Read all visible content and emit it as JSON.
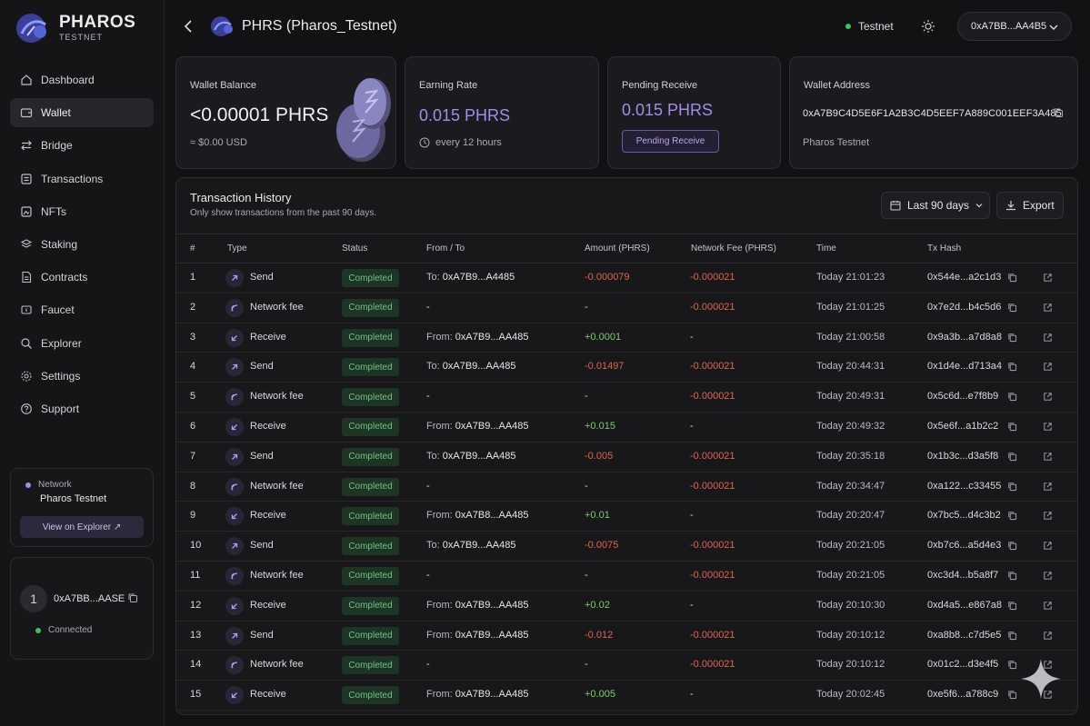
{
  "brand": {
    "name": "PHAROS",
    "sub": "TESTNET"
  },
  "nav": [
    {
      "label": "Dashboard",
      "icon": "home-icon"
    },
    {
      "label": "Wallet",
      "icon": "wallet-icon",
      "active": true
    },
    {
      "label": "Bridge",
      "icon": "bridge-icon"
    },
    {
      "label": "Transactions",
      "icon": "transactions-icon"
    },
    {
      "label": "NFTs",
      "icon": "nft-icon"
    },
    {
      "label": "Staking",
      "icon": "staking-icon"
    },
    {
      "label": "Contracts",
      "icon": "contract-icon"
    },
    {
      "label": "Faucet",
      "icon": "faucet-icon"
    },
    {
      "label": "Explorer",
      "icon": "explorer-icon"
    },
    {
      "label": "Settings",
      "icon": "gear-icon"
    },
    {
      "label": "Support",
      "icon": "support-icon"
    }
  ],
  "network_card": {
    "label": "Network",
    "name": "Pharos Testnet",
    "button": "View on Explorer ↗"
  },
  "account": {
    "avatar": "1",
    "address": "0xA7BB...AASE",
    "status": "Connected"
  },
  "header": {
    "title": "PHRS (Pharos_Testnet)",
    "network": "Testnet",
    "wallet": "0xA7BB...AA4B5"
  },
  "cards": {
    "balance": {
      "label": "Wallet Balance",
      "value": "<0.00001 PHRS",
      "sub": "≈ $0.00 USD"
    },
    "earning": {
      "label": "Earning Rate",
      "value": "0.015 PHRS",
      "sub": "every 12 hours"
    },
    "pending": {
      "label": "Pending Receive",
      "value": "0.015 PHRS",
      "button": "Pending Receive"
    },
    "address": {
      "label": "Wallet Address",
      "value": "0xA7B9C4D5E6F1A2B3C4D5EEF7A889C001EEF3A485",
      "network": "Pharos Testnet"
    }
  },
  "history": {
    "title": "Transaction History",
    "subtitle": "Only show transactions from the past 90 days.",
    "range": "Last 90 days",
    "export": "Export",
    "columns": [
      "#",
      "Type",
      "Status",
      "From / To",
      "Amount (PHRS)",
      "Network Fee (PHRS)",
      "Time",
      "Tx Hash"
    ],
    "rows": [
      {
        "n": "1",
        "type": "Send",
        "status": "Completed",
        "dir": "To:",
        "addr": "0xA7B9...A4485",
        "amount": "-0.000079",
        "fee": "-0.000021",
        "time": "Today 21:01:23",
        "hash": "0x544e...a2c1d3"
      },
      {
        "n": "2",
        "type": "Network fee",
        "status": "Completed",
        "dir": "",
        "addr": "-",
        "amount": "-",
        "fee": "-0.000021",
        "time": "Today 21:01:25",
        "hash": "0x7e2d...b4c5d6"
      },
      {
        "n": "3",
        "type": "Receive",
        "status": "Completed",
        "dir": "From:",
        "addr": "0xA7B9...AA485",
        "amount": "+0.0001",
        "fee": "-",
        "time": "Today 21:00:58",
        "hash": "0x9a3b...a7d8a8"
      },
      {
        "n": "4",
        "type": "Send",
        "status": "Completed",
        "dir": "To:",
        "addr": "0xA7B9...AA485",
        "amount": "-0.01497",
        "fee": "-0.000021",
        "time": "Today 20:44:31",
        "hash": "0x1d4e...d713a4"
      },
      {
        "n": "5",
        "type": "Network fee",
        "status": "Completed",
        "dir": "",
        "addr": "-",
        "amount": "-",
        "fee": "-0.000021",
        "time": "Today 20:49:31",
        "hash": "0x5c6d...e7f8b9"
      },
      {
        "n": "6",
        "type": "Receive",
        "status": "Completed",
        "dir": "From:",
        "addr": "0xA7B9...AA485",
        "amount": "+0.015",
        "fee": "-",
        "time": "Today 20:49:32",
        "hash": "0x5e6f...a1b2c2"
      },
      {
        "n": "7",
        "type": "Send",
        "status": "Completed",
        "dir": "To:",
        "addr": "0xA7B9...AA485",
        "amount": "-0.005",
        "fee": "-0.000021",
        "time": "Today 20:35:18",
        "hash": "0x1b3c...d3a5f8"
      },
      {
        "n": "8",
        "type": "Network fee",
        "status": "Completed",
        "dir": "",
        "addr": "-",
        "amount": "-",
        "fee": "-0.000021",
        "time": "Today 20:34:47",
        "hash": "0xa122...c33455"
      },
      {
        "n": "9",
        "type": "Receive",
        "status": "Completed",
        "dir": "From:",
        "addr": "0xA7B8...AA485",
        "amount": "+0.01",
        "fee": "-",
        "time": "Today 20:20:47",
        "hash": "0x7bc5...d4c3b2"
      },
      {
        "n": "10",
        "type": "Send",
        "status": "Completed",
        "dir": "To:",
        "addr": "0xA7B9...AA485",
        "amount": "-0.0075",
        "fee": "-0.000021",
        "time": "Today 20:21:05",
        "hash": "0xb7c6...a5d4e3"
      },
      {
        "n": "11",
        "type": "Network fee",
        "status": "Completed",
        "dir": "",
        "addr": "-",
        "amount": "-",
        "fee": "-0.000021",
        "time": "Today 20:21:05",
        "hash": "0xc3d4...b5a8f7"
      },
      {
        "n": "12",
        "type": "Receive",
        "status": "Completed",
        "dir": "From:",
        "addr": "0xA7B9...AA485",
        "amount": "+0.02",
        "fee": "-",
        "time": "Today 20:10:30",
        "hash": "0xd4a5...e867a8"
      },
      {
        "n": "13",
        "type": "Send",
        "status": "Completed",
        "dir": "From:",
        "addr": "0xA7B9...AA485",
        "amount": "-0.012",
        "fee": "-0.000021",
        "time": "Today 20:10:12",
        "hash": "0xa8b8...c7d5e5"
      },
      {
        "n": "14",
        "type": "Network fee",
        "status": "Completed",
        "dir": "",
        "addr": "-",
        "amount": "-",
        "fee": "-0.000021",
        "time": "Today 20:10:12",
        "hash": "0x01c2...d3e4f5"
      },
      {
        "n": "15",
        "type": "Receive",
        "status": "Completed",
        "dir": "From:",
        "addr": "0xA7B9...AA485",
        "amount": "+0.005",
        "fee": "-",
        "time": "Today 20:02:45",
        "hash": "0xe5f6...a788c9"
      }
    ]
  },
  "colors": {
    "accent": "#a38ce6",
    "negative": "#e0634f",
    "positive": "#7ccc6c",
    "status_ok": "#3ec35f"
  }
}
